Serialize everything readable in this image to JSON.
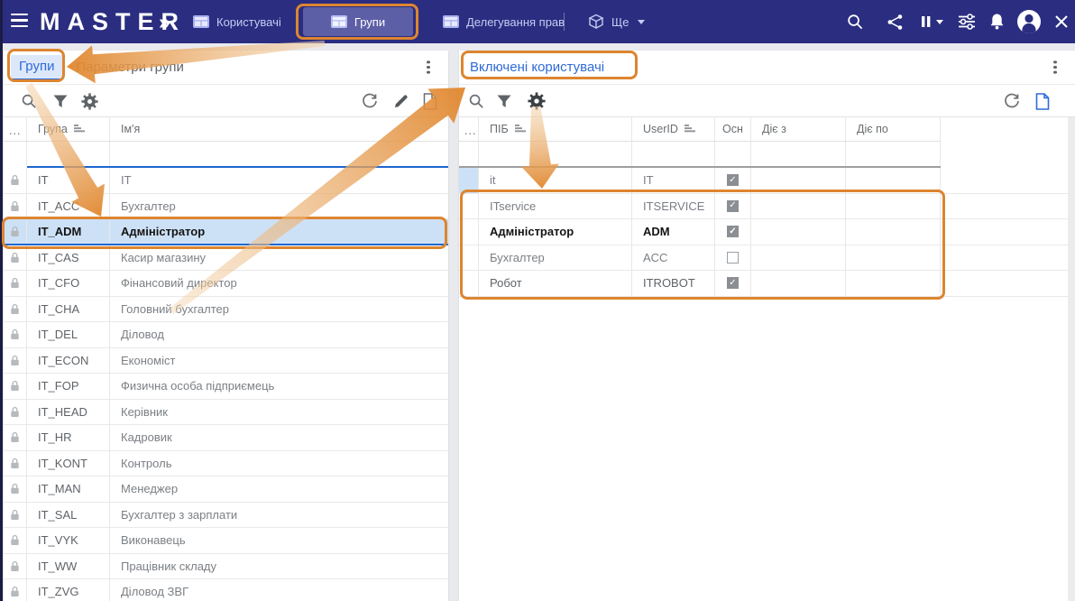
{
  "topbar": {
    "logo": "MASTER",
    "logo_chevrons": "»",
    "tabs": [
      {
        "label": "Користувачі",
        "active": false
      },
      {
        "label": "Групи",
        "active": true
      },
      {
        "label": "Делегування прав",
        "active": false
      }
    ],
    "more_label": "Ще",
    "right_icons": [
      "search-icon",
      "share-icon",
      "pause-dropdown-icon",
      "tune-icon",
      "notifications-icon",
      "account-icon",
      "close-icon"
    ]
  },
  "left_panel": {
    "tab_active_label": "Групи",
    "tab_inactive_label": "Параметри групи",
    "toolbar_icons_left": [
      "search-icon",
      "filter-icon",
      "settings-icon"
    ],
    "toolbar_icons_right": [
      "refresh-icon",
      "edit-icon",
      "document-icon"
    ],
    "table": {
      "columns": [
        "...",
        "Група",
        "Ім'я"
      ],
      "sorted_column": "Група",
      "selected_code": "IT_ADM",
      "rows": [
        {
          "code": "IT",
          "name": "IT"
        },
        {
          "code": "IT_ACC",
          "name": "Бухгалтер"
        },
        {
          "code": "IT_ADM",
          "name": "Адміністратор"
        },
        {
          "code": "IT_CAS",
          "name": "Касир магазину"
        },
        {
          "code": "IT_CFO",
          "name": "Фінансовий директор"
        },
        {
          "code": "IT_CHA",
          "name": "Головний бухгалтер"
        },
        {
          "code": "IT_DEL",
          "name": "Діловод"
        },
        {
          "code": "IT_ECON",
          "name": "Економіст"
        },
        {
          "code": "IT_FOP",
          "name": "Физична особа підприємець"
        },
        {
          "code": "IT_HEAD",
          "name": "Керівник"
        },
        {
          "code": "IT_HR",
          "name": "Кадровик"
        },
        {
          "code": "IT_KONT",
          "name": "Контроль"
        },
        {
          "code": "IT_MAN",
          "name": "Менеджер"
        },
        {
          "code": "IT_SAL",
          "name": "Бухгалтер з зарплати"
        },
        {
          "code": "IT_VYK",
          "name": "Виконавець"
        },
        {
          "code": "IT_WW",
          "name": "Працівник складу"
        },
        {
          "code": "IT_ZVG",
          "name": "Діловод ЗВГ"
        }
      ]
    }
  },
  "right_panel": {
    "title": "Включені користувачі",
    "toolbar_icons_left": [
      "search-icon",
      "filter-icon",
      "settings-icon"
    ],
    "toolbar_icons_right": [
      "refresh-icon",
      "document-icon"
    ],
    "table": {
      "columns": [
        "...",
        "ПІБ",
        "UserID",
        "Осн",
        "Діє з",
        "Діє по"
      ],
      "sorted_columns": [
        "ПІБ",
        "UserID"
      ],
      "rows": [
        {
          "pib": "it",
          "userid": "IT",
          "main": true,
          "from": "",
          "to": "",
          "current": true,
          "bold": false
        },
        {
          "pib": "ITservice",
          "userid": "ITSERVICE",
          "main": true,
          "from": "",
          "to": "",
          "current": false,
          "bold": false
        },
        {
          "pib": "Адміністратор",
          "userid": "ADM",
          "main": true,
          "from": "",
          "to": "",
          "current": false,
          "bold": true
        },
        {
          "pib": "Бухгалтер",
          "userid": "ACC",
          "main": false,
          "from": "",
          "to": "",
          "current": false,
          "bold": false
        },
        {
          "pib": "Робот",
          "userid": "ITROBOT",
          "main": true,
          "from": "",
          "to": "",
          "current": false,
          "bold": false
        }
      ]
    }
  },
  "annotations": {
    "highlight_color": "#dd8530"
  }
}
